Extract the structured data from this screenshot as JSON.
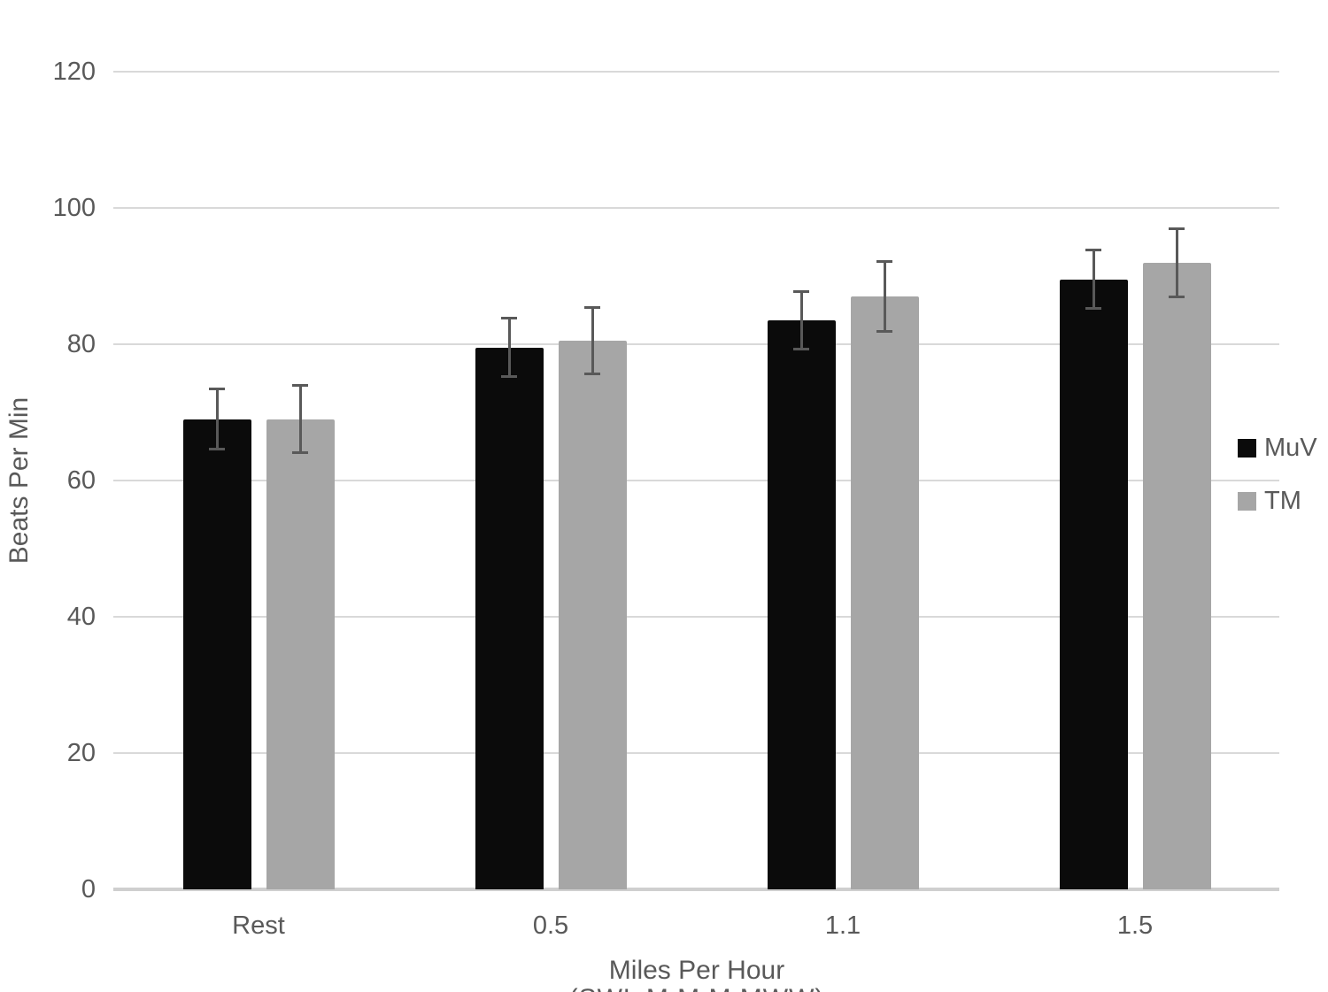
{
  "chart_data": {
    "type": "bar",
    "title": "",
    "categories": [
      "Rest",
      "0.5",
      "1.1",
      "1.5"
    ],
    "series": [
      {
        "name": "MuV",
        "color": "#0b0b0b",
        "values": [
          69,
          79.5,
          83.5,
          89.5
        ],
        "errors": [
          4.4,
          4.3,
          4.2,
          4.3
        ]
      },
      {
        "name": "TM",
        "color": "#a6a6a6",
        "values": [
          69,
          80.5,
          87,
          92
        ],
        "errors": [
          4.9,
          4.9,
          5.1,
          5.0
        ]
      }
    ],
    "xlabel": "Miles Per Hour",
    "ylabel": "Beats Per Min",
    "ylim": [
      0,
      120
    ],
    "yticks": [
      0,
      20,
      40,
      60,
      80,
      100,
      120
    ],
    "grid": "horizontal",
    "legend_position": "right",
    "colors": {
      "gridline": "#d9d9d9",
      "axis_baseline": "#cfcfcf",
      "error_bar": "#595959",
      "tick_text": "#595959"
    },
    "clipped_caption": "(SWL M M M MWW)"
  }
}
